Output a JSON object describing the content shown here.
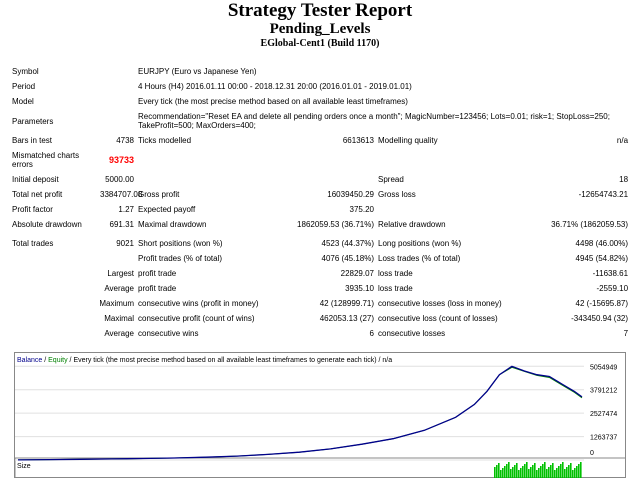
{
  "header": {
    "title": "Strategy Tester Report",
    "subtitle": "Pending_Levels",
    "build": "EGlobal-Cent1 (Build 1170)"
  },
  "info": {
    "symbol_label": "Symbol",
    "symbol_value": "EURJPY (Euro vs Japanese Yen)",
    "period_label": "Period",
    "period_value": "4 Hours (H4) 2016.01.11 00:00 - 2018.12.31 20:00 (2016.01.01 - 2019.01.01)",
    "model_label": "Model",
    "model_value": "Every tick (the most precise method based on all available least timeframes)",
    "parameters_label": "Parameters",
    "parameters_line1": "Recommendation=\"Reset EA and delete all pending orders once a month\"; MagicNumber=123456; Lots=0.01; risk=1; StopLoss=250;",
    "parameters_line2": "TakeProfit=500; MaxOrders=400;"
  },
  "stats": {
    "bars_label": "Bars in test",
    "bars_value": "4738",
    "ticks_label": "Ticks modelled",
    "ticks_value": "6613613",
    "quality_label": "Modelling quality",
    "quality_value": "n/a",
    "mismatch_label_1": "Mismatched charts",
    "mismatch_label_2": "errors",
    "mismatch_value": "93733",
    "deposit_label": "Initial deposit",
    "deposit_value": "5000.00",
    "spread_label": "Spread",
    "spread_value": "18",
    "netprofit_label": "Total net profit",
    "netprofit_value": "3384707.08",
    "grossprofit_label": "Gross profit",
    "grossprofit_value": "16039450.29",
    "grossloss_label": "Gross loss",
    "grossloss_value": "-12654743.21",
    "pf_label": "Profit factor",
    "pf_value": "1.27",
    "payoff_label": "Expected payoff",
    "payoff_value": "375.20",
    "absdd_label": "Absolute drawdown",
    "absdd_value": "691.31",
    "maxdd_label": "Maximal drawdown",
    "maxdd_value": "1862059.53 (36.71%)",
    "reldd_label": "Relative drawdown",
    "reldd_value": "36.71% (1862059.53)",
    "trades_label": "Total trades",
    "trades_value": "9021",
    "short_label": "Short positions (won %)",
    "short_value": "4523 (44.37%)",
    "long_label": "Long positions (won %)",
    "long_value": "4498 (46.00%)",
    "profittrades_label": "Profit trades (% of total)",
    "profittrades_value": "4076 (45.18%)",
    "losstrades_label": "Loss trades (% of total)",
    "losstrades_value": "4945 (54.82%)",
    "largest_label": "Largest",
    "largest_pt_label": "profit trade",
    "largest_pt_value": "22829.07",
    "largest_lt_label": "loss trade",
    "largest_lt_value": "-11638.61",
    "average_label": "Average",
    "average_pt_label": "profit trade",
    "average_pt_value": "3935.10",
    "average_lt_label": "loss trade",
    "average_lt_value": "-2559.10",
    "maximum_label": "Maximum",
    "max_cw_label": "consecutive wins (profit in money)",
    "max_cw_value": "42 (128999.71)",
    "max_cl_label": "consecutive losses (loss in money)",
    "max_cl_value": "42 (-15695.87)",
    "maximal_label": "Maximal",
    "maximal_cp_label": "consecutive profit (count of wins)",
    "maximal_cp_value": "462053.13 (27)",
    "maximal_cl_label": "consecutive loss (count of losses)",
    "maximal_cl_value": "-343450.94 (32)",
    "avg2_label": "Average",
    "avg_cw_label": "consecutive wins",
    "avg_cw_value": "6",
    "avg_cl_label": "consecutive losses",
    "avg_cl_value": "7"
  },
  "chart_legend": {
    "balance": "Balance",
    "sep1": " / ",
    "equity": "Equity",
    "rest": " / Every tick (the most precise method based on all available least timeframes to generate each tick) / n/a",
    "size_label": "Size"
  },
  "colors": {
    "balance": "#00008b",
    "equity": "#008000",
    "size": "#00c000",
    "mismatch": "#ff0000"
  },
  "chart_data": {
    "type": "line",
    "ylim": [
      0,
      5500000
    ],
    "y_ticks": [
      "5054949",
      "3791212",
      "2527474",
      "1263737",
      "0"
    ],
    "y_tick_values": [
      5054949,
      3791212,
      2527474,
      1263737,
      0
    ],
    "x": [
      0,
      500,
      1000,
      1500,
      2000,
      2500,
      3000,
      3500,
      4000,
      4500,
      5000,
      5500,
      6000,
      6500,
      7000,
      7300,
      7500,
      7700,
      7900,
      8100,
      8300,
      8500,
      8700,
      8900,
      9021
    ],
    "series": [
      {
        "name": "Balance",
        "values": [
          5000,
          20000,
          40000,
          60000,
          80000,
          110000,
          150000,
          210000,
          300000,
          420000,
          600000,
          850000,
          1150000,
          1600000,
          2300000,
          3000000,
          3700000,
          4600000,
          5054949,
          4800000,
          4600000,
          4500000,
          4100000,
          3700000,
          3400000
        ]
      },
      {
        "name": "Equity",
        "values": [
          5000,
          20000,
          40000,
          60000,
          80000,
          110000,
          150000,
          210000,
          300000,
          420000,
          600000,
          850000,
          1150000,
          1600000,
          2300000,
          3000000,
          3700000,
          4600000,
          5000000,
          4780000,
          4560000,
          4450000,
          4050000,
          3650000,
          3350000
        ]
      }
    ]
  }
}
